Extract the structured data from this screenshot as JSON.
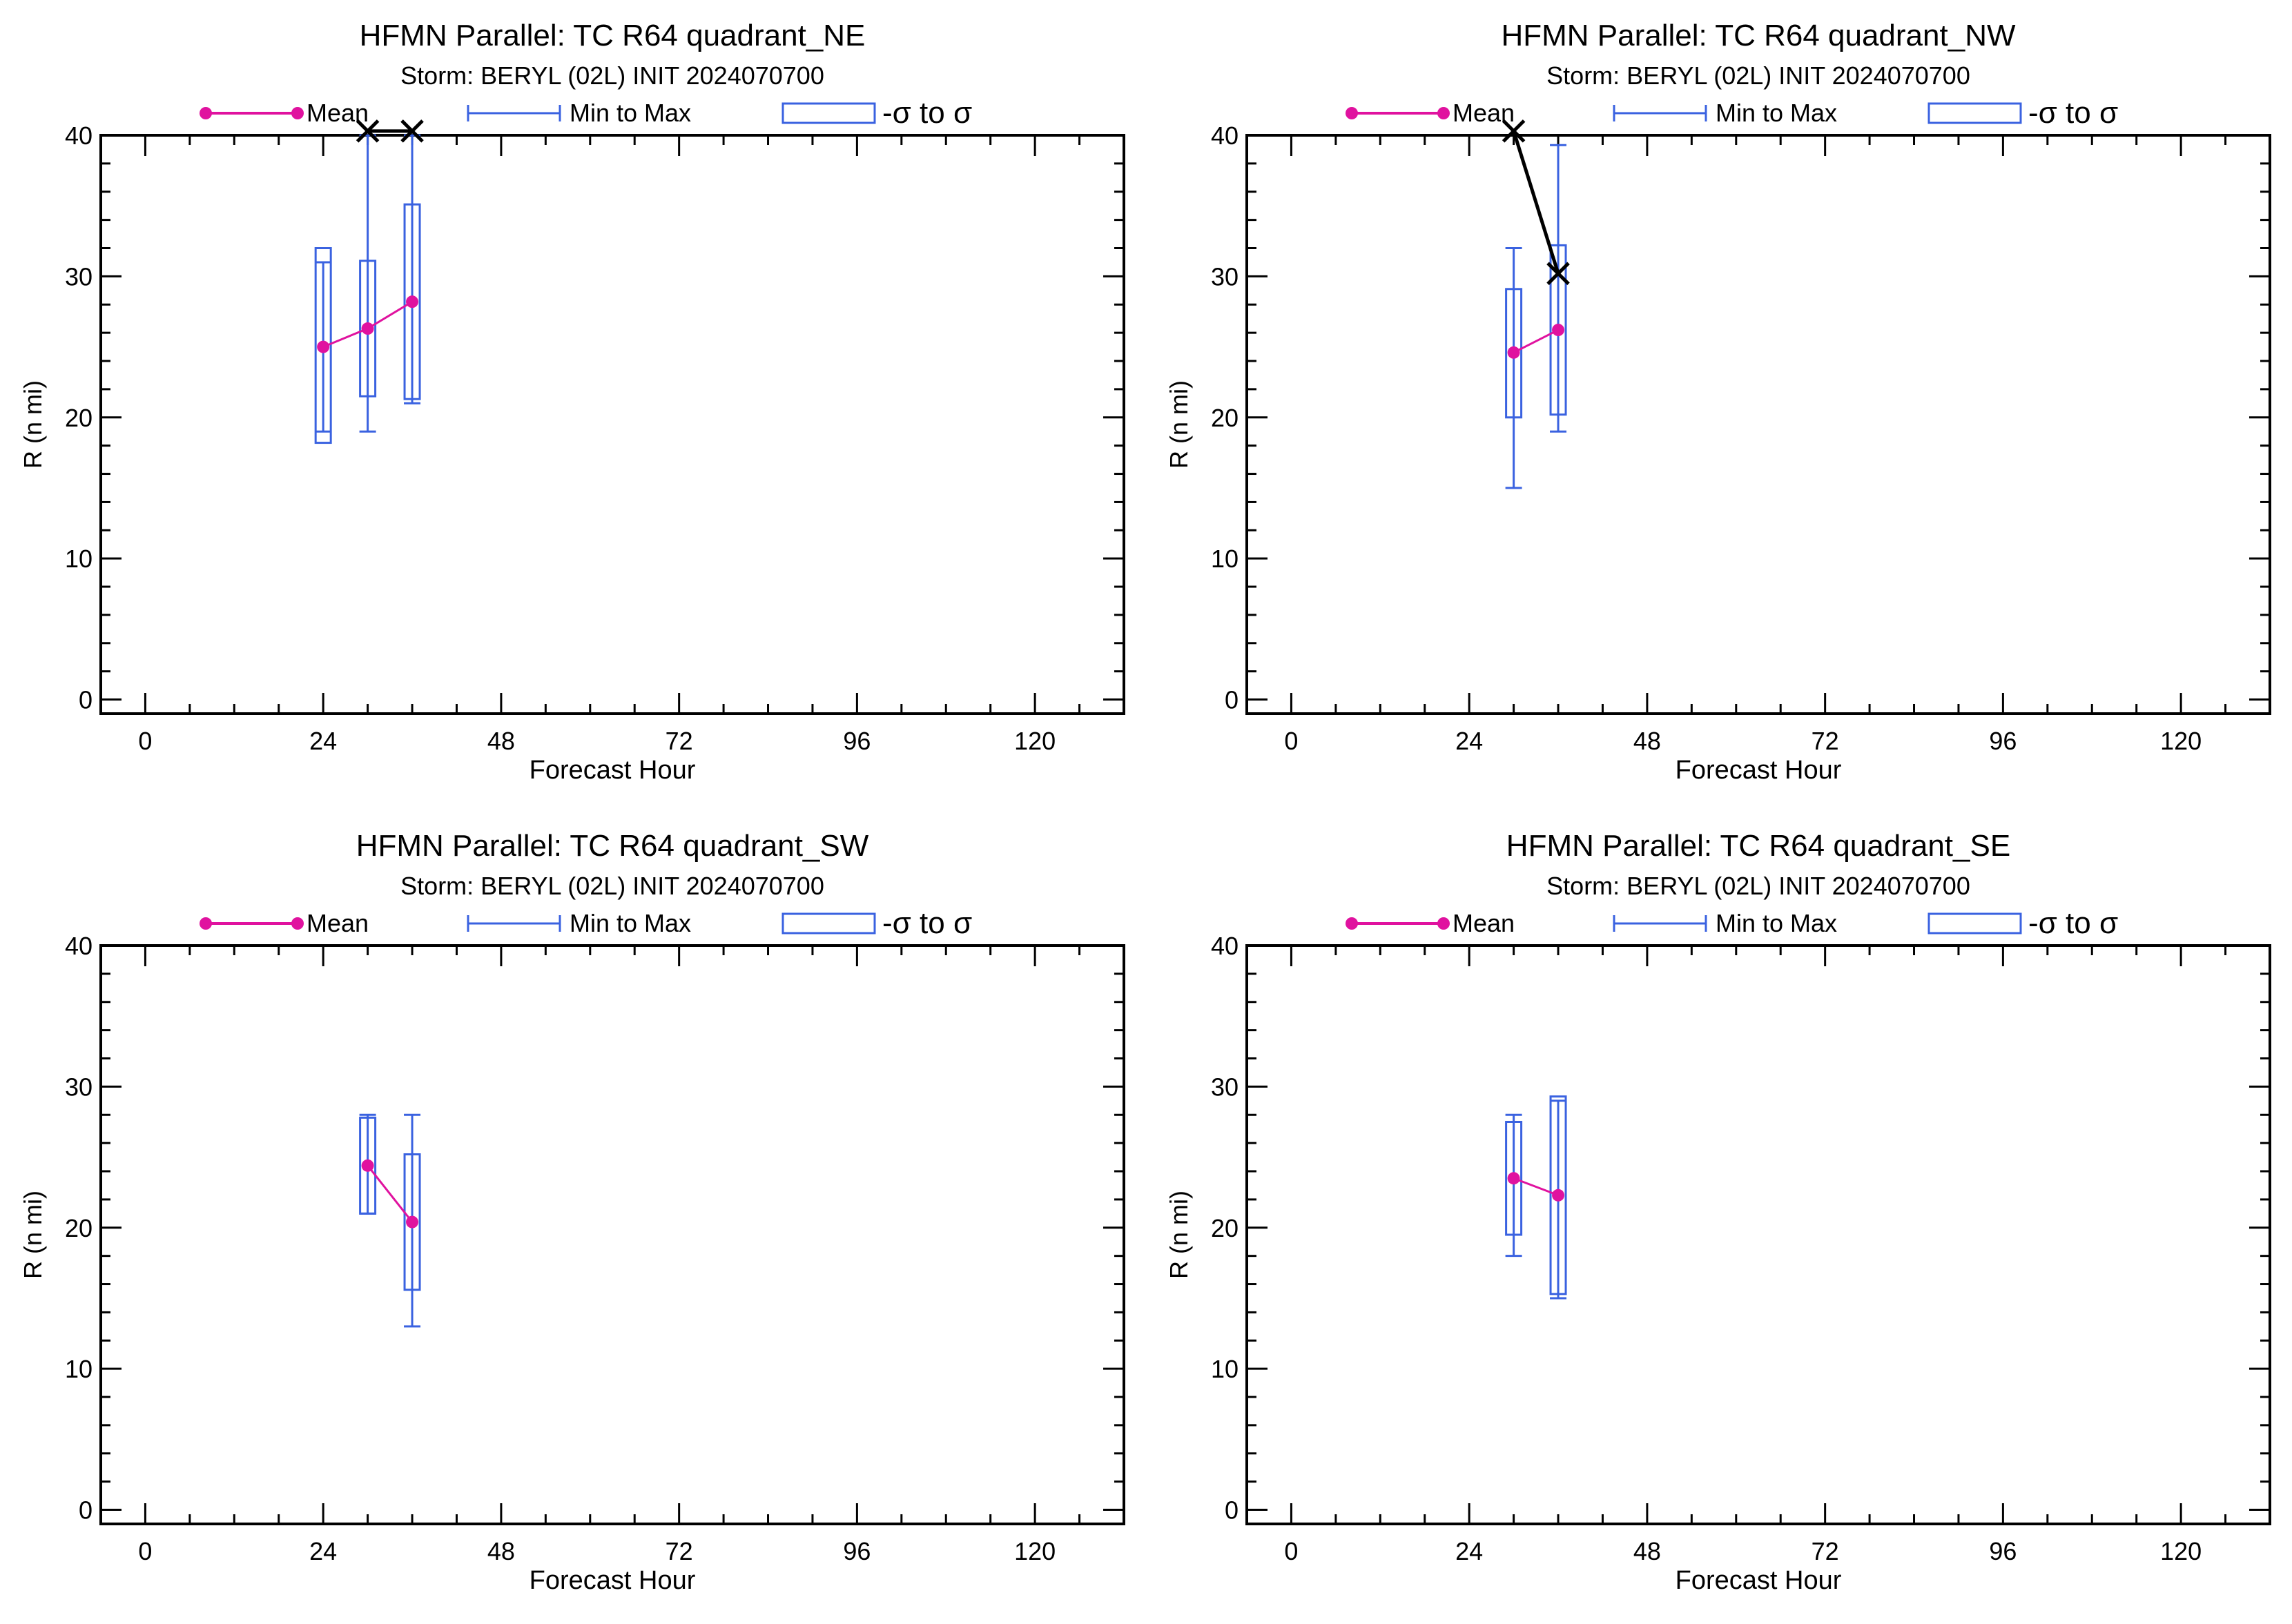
{
  "colors": {
    "mean": "#e0129f",
    "range": "#3a62e0",
    "axis": "#000000",
    "observed": "#000000"
  },
  "chart_data": [
    {
      "type": "box-range",
      "title": "HFMN Parallel: TC  R64 quadrant_NE",
      "subtitle": "Storm: BERYL (02L) INIT 2024070700",
      "xlabel": "Forecast Hour",
      "ylabel": "R (n mi)",
      "xlim": [
        -6,
        132
      ],
      "ylim": [
        -1,
        40
      ],
      "xticks": [
        0,
        24,
        48,
        72,
        96,
        120
      ],
      "yticks": [
        0,
        10,
        20,
        30,
        40
      ],
      "legend": {
        "mean": "Mean",
        "range": "Min to Max",
        "sigma": "-σ to σ"
      },
      "mean": [
        {
          "x": 24,
          "y": 25.0
        },
        {
          "x": 30,
          "y": 26.3
        },
        {
          "x": 36,
          "y": 28.2
        }
      ],
      "range": [
        {
          "x": 24,
          "min": 19,
          "max": 31
        },
        {
          "x": 30,
          "min": 19,
          "max": 40
        },
        {
          "x": 36,
          "min": 21,
          "max": 40
        }
      ],
      "sigma": [
        {
          "x": 24,
          "low": 18.2,
          "high": 32.0
        },
        {
          "x": 30,
          "low": 21.5,
          "high": 31.1
        },
        {
          "x": 36,
          "low": 21.3,
          "high": 35.1
        }
      ],
      "observed": [
        {
          "x": 30,
          "y": 40.3
        },
        {
          "x": 36,
          "y": 40.3
        }
      ]
    },
    {
      "type": "box-range",
      "title": "HFMN Parallel: TC  R64 quadrant_NW",
      "subtitle": "Storm: BERYL (02L) INIT 2024070700",
      "xlabel": "Forecast Hour",
      "ylabel": "R (n mi)",
      "xlim": [
        -6,
        132
      ],
      "ylim": [
        -1,
        40
      ],
      "xticks": [
        0,
        24,
        48,
        72,
        96,
        120
      ],
      "yticks": [
        0,
        10,
        20,
        30,
        40
      ],
      "legend": {
        "mean": "Mean",
        "range": "Min to Max",
        "sigma": "-σ to σ"
      },
      "mean": [
        {
          "x": 30,
          "y": 24.6
        },
        {
          "x": 36,
          "y": 26.2
        }
      ],
      "range": [
        {
          "x": 30,
          "min": 15,
          "max": 32
        },
        {
          "x": 36,
          "min": 19,
          "max": 39.3
        }
      ],
      "sigma": [
        {
          "x": 30,
          "low": 20.0,
          "high": 29.1
        },
        {
          "x": 36,
          "low": 20.2,
          "high": 32.2
        }
      ],
      "observed": [
        {
          "x": 30,
          "y": 40.3
        },
        {
          "x": 36,
          "y": 30.2
        }
      ]
    },
    {
      "type": "box-range",
      "title": "HFMN Parallel: TC  R64 quadrant_SW",
      "subtitle": "Storm: BERYL (02L) INIT 2024070700",
      "xlabel": "Forecast Hour",
      "ylabel": "R (n mi)",
      "xlim": [
        -6,
        132
      ],
      "ylim": [
        -1,
        40
      ],
      "xticks": [
        0,
        24,
        48,
        72,
        96,
        120
      ],
      "yticks": [
        0,
        10,
        20,
        30,
        40
      ],
      "legend": {
        "mean": "Mean",
        "range": "Min to Max",
        "sigma": "-σ to σ"
      },
      "mean": [
        {
          "x": 30,
          "y": 24.4
        },
        {
          "x": 36,
          "y": 20.4
        }
      ],
      "range": [
        {
          "x": 30,
          "min": 21,
          "max": 28
        },
        {
          "x": 36,
          "min": 13,
          "max": 28
        }
      ],
      "sigma": [
        {
          "x": 30,
          "low": 21.0,
          "high": 27.8
        },
        {
          "x": 36,
          "low": 15.6,
          "high": 25.2
        }
      ],
      "observed": []
    },
    {
      "type": "box-range",
      "title": "HFMN Parallel: TC  R64 quadrant_SE",
      "subtitle": "Storm: BERYL (02L) INIT 2024070700",
      "xlabel": "Forecast Hour",
      "ylabel": "R (n mi)",
      "xlim": [
        -6,
        132
      ],
      "ylim": [
        -1,
        40
      ],
      "xticks": [
        0,
        24,
        48,
        72,
        96,
        120
      ],
      "yticks": [
        0,
        10,
        20,
        30,
        40
      ],
      "legend": {
        "mean": "Mean",
        "range": "Min to Max",
        "sigma": "-σ to σ"
      },
      "mean": [
        {
          "x": 30,
          "y": 23.5
        },
        {
          "x": 36,
          "y": 22.3
        }
      ],
      "range": [
        {
          "x": 30,
          "min": 18,
          "max": 28
        },
        {
          "x": 36,
          "min": 15,
          "max": 29
        }
      ],
      "sigma": [
        {
          "x": 30,
          "low": 19.5,
          "high": 27.5
        },
        {
          "x": 36,
          "low": 15.3,
          "high": 29.3
        }
      ],
      "observed": []
    }
  ]
}
